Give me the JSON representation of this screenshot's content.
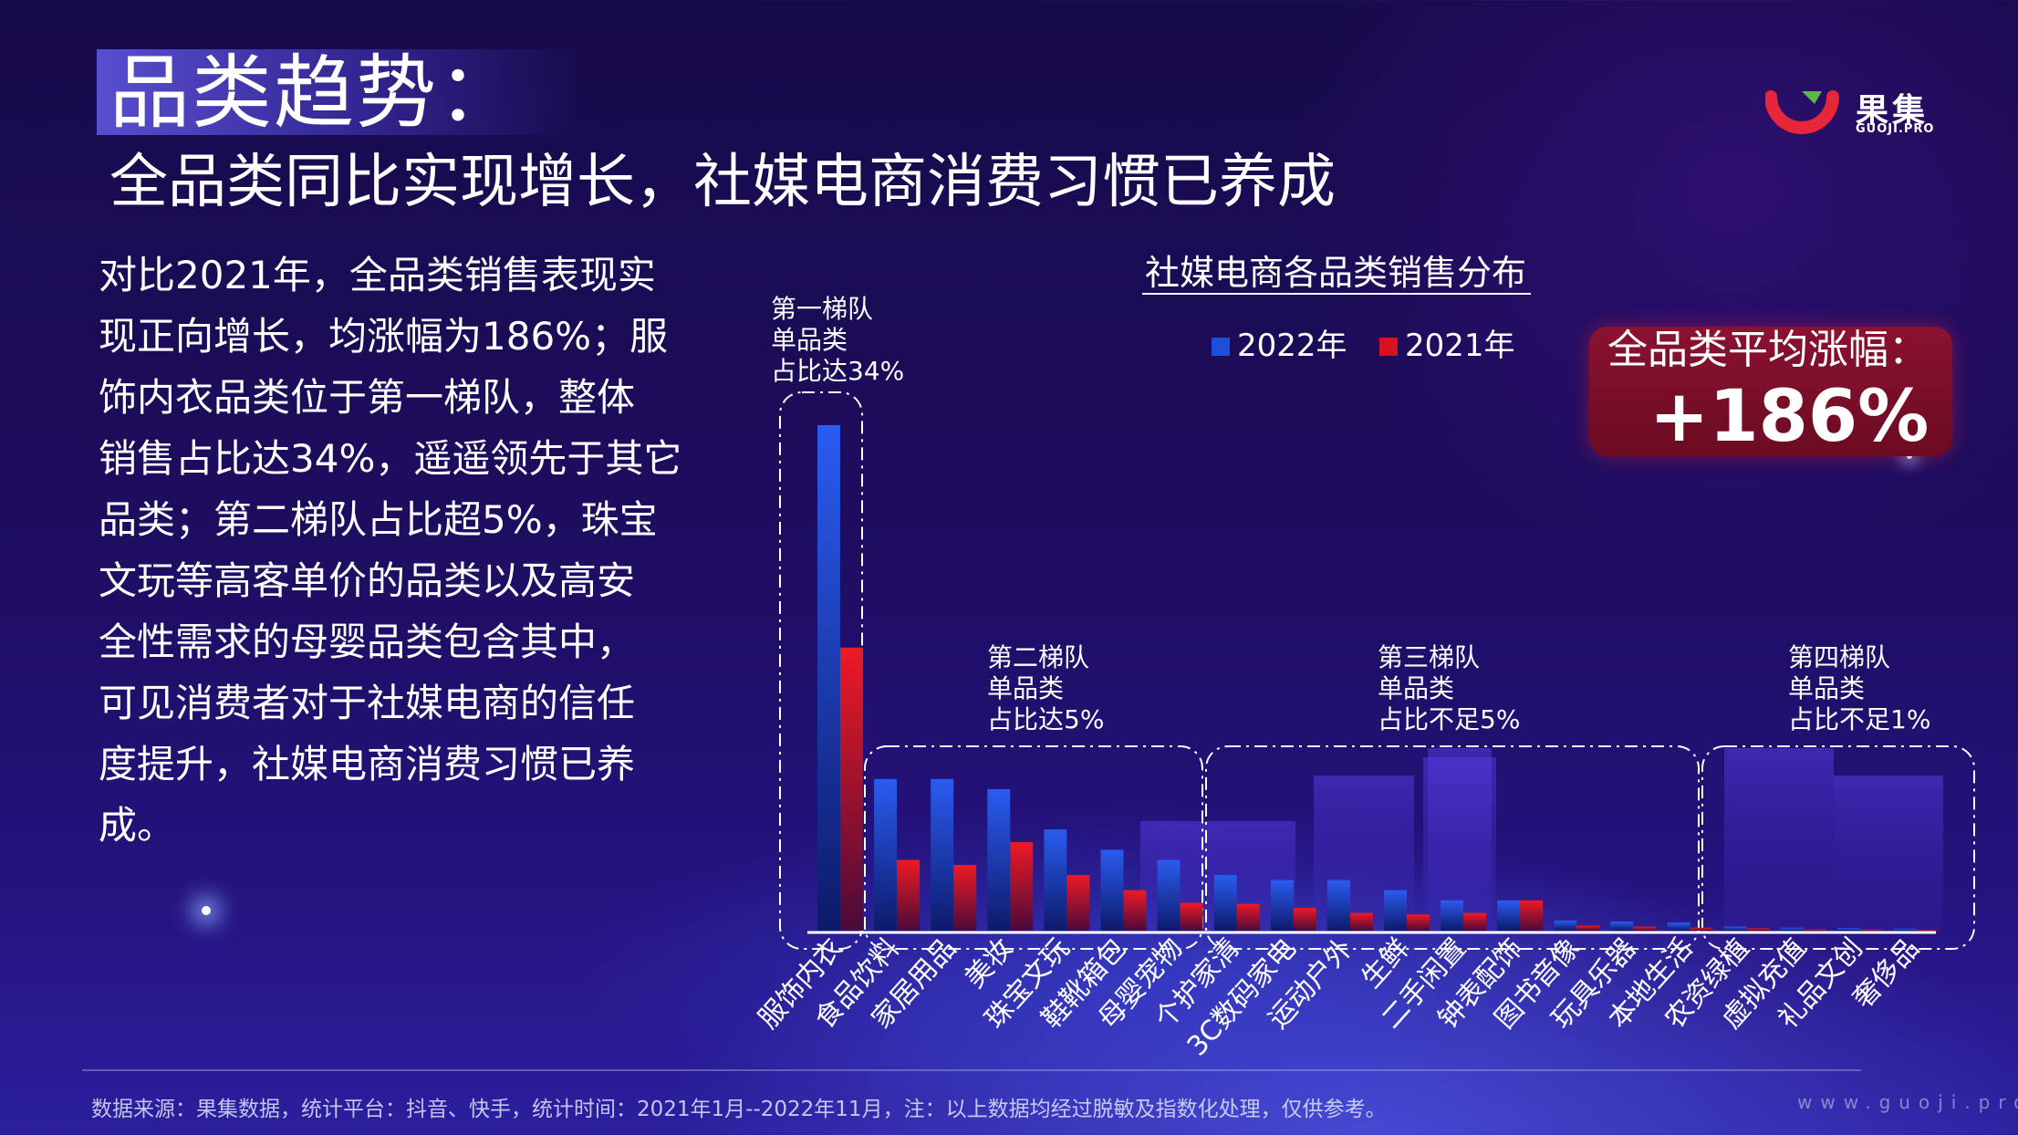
{
  "header": {
    "title": "品类趋势：",
    "subtitle": "全品类同比实现增长，社媒电商消费习惯已养成"
  },
  "logo": {
    "name": "果集",
    "sub": "GUOJI.PRO"
  },
  "description": "对比2021年，全品类销售表现实\n现正向增长，均涨幅为186%；服\n饰内衣品类位于第一梯队，整体\n销售占比达34%，遥遥领先于其它\n品类；第二梯队占比超5%，珠宝\n文玩等高客单价的品类以及高安\n全性需求的母婴品类包含其中，\n可见消费者对于社媒电商的信任\n度提升，社媒电商消费习惯已养\n成。",
  "badge": {
    "label": "全品类平均涨幅：",
    "value": "+186%"
  },
  "tiers": [
    {
      "lines": [
        "第一梯队",
        "单品类",
        "占比达34%"
      ]
    },
    {
      "lines": [
        "第二梯队",
        "单品类",
        "占比达5%"
      ]
    },
    {
      "lines": [
        "第三梯队",
        "单品类",
        "占比不足5%"
      ]
    },
    {
      "lines": [
        "第四梯队",
        "单品类",
        "占比不足1%"
      ]
    }
  ],
  "chart_data": {
    "type": "bar",
    "title": "社媒电商各品类销售分布",
    "categories": [
      "服饰内衣",
      "食品饮料",
      "家居用品",
      "美妆",
      "珠宝文玩",
      "鞋靴箱包",
      "母婴宠物",
      "个护家清",
      "3C数码家电",
      "运动户外",
      "生鲜",
      "二手闲置",
      "钟表配饰",
      "图书音像",
      "玩具乐器",
      "本地生活",
      "农资绿植",
      "虚拟充值",
      "礼品文创",
      "奢侈品"
    ],
    "series": [
      {
        "name": "2022年",
        "color": "#1f4fd6",
        "values": [
          100,
          30,
          30,
          28,
          20,
          16,
          14,
          11,
          10,
          10,
          8,
          6,
          6,
          2,
          1.8,
          1.6,
          0.8,
          0.6,
          0.5,
          0.4
        ]
      },
      {
        "name": "2021年",
        "color": "#d6121f",
        "values": [
          56,
          14,
          13,
          17.5,
          11,
          8,
          5.5,
          5.3,
          4.5,
          3.5,
          3.2,
          3.5,
          6,
          1,
          0.8,
          0.6,
          0.5,
          0.3,
          0.3,
          0.2
        ]
      }
    ],
    "ylim": [
      0,
      100
    ],
    "legend": "top",
    "grid": false,
    "tier_groups": [
      [
        0,
        0
      ],
      [
        1,
        6
      ],
      [
        7,
        12
      ],
      [
        13,
        19
      ]
    ]
  },
  "footer": {
    "source": "数据来源：果集数据，统计平台：抖音、快手，统计时间：2021年1月--2022年11月，注：以上数据均经过脱敏及指数化处理，仅供参考。",
    "watermark": "www.guoji.pro"
  }
}
